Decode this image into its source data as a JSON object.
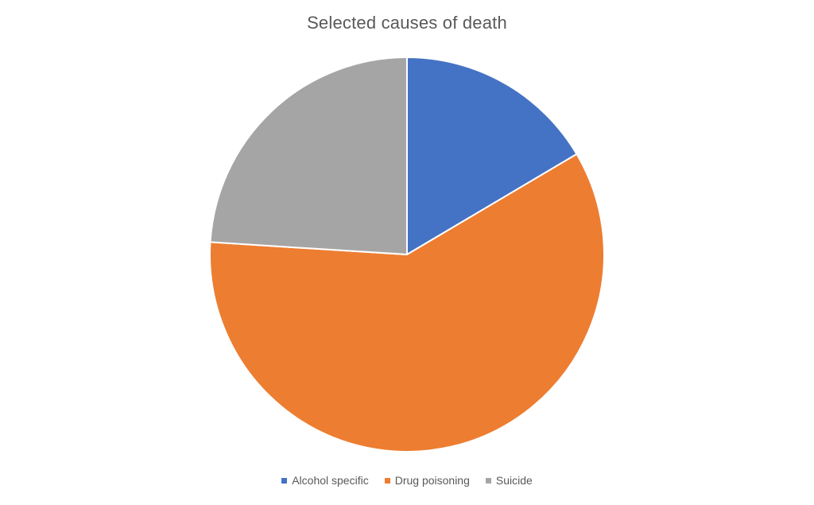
{
  "chart_data": {
    "type": "pie",
    "title": "Selected causes of death",
    "legend_position": "bottom",
    "categories": [
      "Alcohol specific",
      "Drug poisoning",
      "Suicide"
    ],
    "values": [
      16.5,
      59.5,
      24.0
    ],
    "colors": [
      "#4472C4",
      "#ED7D31",
      "#A5A5A5"
    ],
    "start_angle_deg": 0,
    "direction": "clockwise"
  }
}
